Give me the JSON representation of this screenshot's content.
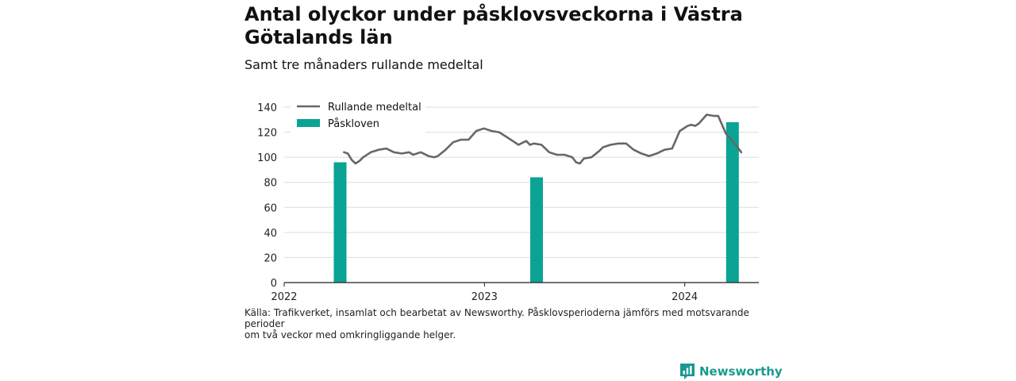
{
  "header": {
    "title": "Antal olyckor under påsklovsveckorna i Västra Götalands län",
    "subtitle": "Samt tre månaders rullande medeltal"
  },
  "footer": {
    "source_line1": "Källa: Trafikverket, insamlat och bearbetat av Newsworthy. Påsklovsperioderna jämförs med motsvarande perioder",
    "source_line2": "om två veckor med omkringliggande helger.",
    "brand": "Newsworthy"
  },
  "colors": {
    "line": "#676767",
    "bar": "#0ba394",
    "grid": "#dddddd",
    "brand": "#199990"
  },
  "chart_data": {
    "type": "bar",
    "ylim": [
      0,
      140
    ],
    "yticks": [
      0,
      20,
      40,
      60,
      80,
      100,
      120,
      140
    ],
    "xlim": [
      "2022-01-01",
      "2024-05-15"
    ],
    "xticks": [
      {
        "date": "2022-01-01",
        "label": "2022"
      },
      {
        "date": "2023-01-01",
        "label": "2023"
      },
      {
        "date": "2024-01-01",
        "label": "2024"
      }
    ],
    "legend_position": "top-left",
    "series": [
      {
        "name": "Rullande medeltal",
        "kind": "line",
        "points": [
          [
            "2022-04-20",
            104
          ],
          [
            "2022-04-27",
            103
          ],
          [
            "2022-05-04",
            98
          ],
          [
            "2022-05-11",
            95
          ],
          [
            "2022-05-18",
            97
          ],
          [
            "2022-05-25",
            100
          ],
          [
            "2022-06-08",
            104
          ],
          [
            "2022-06-22",
            106
          ],
          [
            "2022-07-06",
            107
          ],
          [
            "2022-07-20",
            104
          ],
          [
            "2022-08-03",
            103
          ],
          [
            "2022-08-17",
            104
          ],
          [
            "2022-08-24",
            102
          ],
          [
            "2022-09-07",
            104
          ],
          [
            "2022-09-21",
            101
          ],
          [
            "2022-10-01",
            100
          ],
          [
            "2022-10-08",
            101
          ],
          [
            "2022-10-22",
            106
          ],
          [
            "2022-11-05",
            112
          ],
          [
            "2022-11-19",
            114
          ],
          [
            "2022-12-03",
            114
          ],
          [
            "2022-12-17",
            121
          ],
          [
            "2022-12-31",
            123
          ],
          [
            "2023-01-14",
            121
          ],
          [
            "2023-01-28",
            120
          ],
          [
            "2023-02-11",
            116
          ],
          [
            "2023-02-25",
            112
          ],
          [
            "2023-03-04",
            110
          ],
          [
            "2023-03-18",
            113
          ],
          [
            "2023-03-25",
            110
          ],
          [
            "2023-04-01",
            111
          ],
          [
            "2023-04-15",
            110
          ],
          [
            "2023-04-29",
            104
          ],
          [
            "2023-05-13",
            102
          ],
          [
            "2023-05-27",
            102
          ],
          [
            "2023-06-10",
            100
          ],
          [
            "2023-06-17",
            96
          ],
          [
            "2023-06-24",
            95
          ],
          [
            "2023-07-01",
            99
          ],
          [
            "2023-07-15",
            100
          ],
          [
            "2023-07-29",
            105
          ],
          [
            "2023-08-05",
            108
          ],
          [
            "2023-08-19",
            110
          ],
          [
            "2023-09-02",
            111
          ],
          [
            "2023-09-16",
            111
          ],
          [
            "2023-09-30",
            106
          ],
          [
            "2023-10-14",
            103
          ],
          [
            "2023-10-28",
            101
          ],
          [
            "2023-11-11",
            103
          ],
          [
            "2023-11-25",
            106
          ],
          [
            "2023-12-09",
            107
          ],
          [
            "2023-12-23",
            121
          ],
          [
            "2024-01-06",
            125
          ],
          [
            "2024-01-13",
            126
          ],
          [
            "2024-01-20",
            125
          ],
          [
            "2024-01-27",
            127
          ],
          [
            "2024-02-10",
            134
          ],
          [
            "2024-02-24",
            133
          ],
          [
            "2024-03-02",
            133
          ],
          [
            "2024-03-16",
            119
          ],
          [
            "2024-03-30",
            112
          ],
          [
            "2024-04-13",
            104
          ]
        ]
      },
      {
        "name": "Påskloven",
        "kind": "bar",
        "bars": [
          {
            "date": "2022-04-13",
            "value": 96
          },
          {
            "date": "2023-04-06",
            "value": 84
          },
          {
            "date": "2024-03-28",
            "value": 128
          }
        ]
      }
    ]
  }
}
